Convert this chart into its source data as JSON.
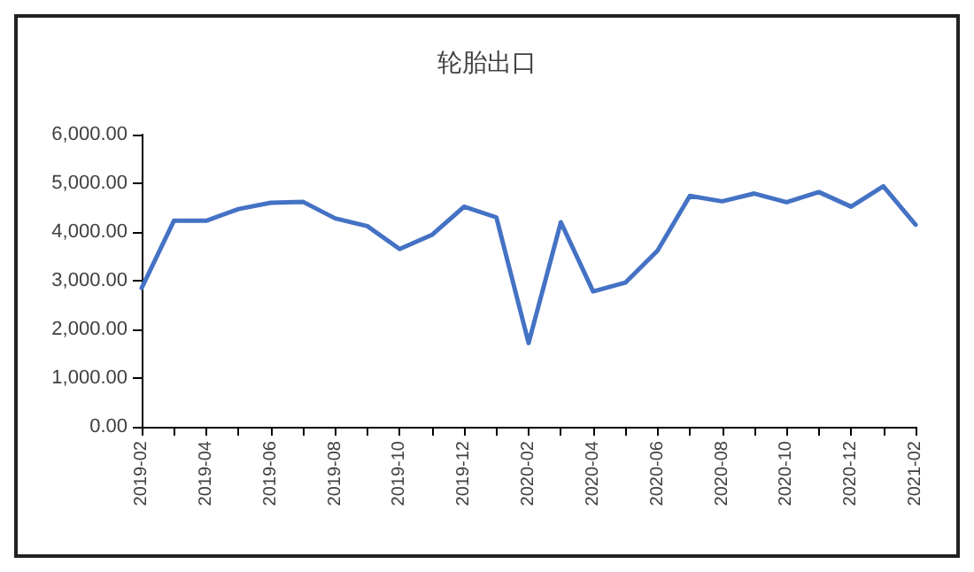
{
  "chart_data": {
    "type": "line",
    "title": "轮胎出口",
    "categories": [
      "2019-02",
      null,
      "2019-04",
      null,
      "2019-06",
      null,
      "2019-08",
      null,
      "2019-10",
      null,
      "2019-12",
      null,
      "2020-02",
      null,
      "2020-04",
      null,
      "2020-06",
      null,
      "2020-08",
      null,
      "2020-10",
      null,
      "2020-12",
      null,
      "2021-02"
    ],
    "series": [
      {
        "color": "#4472c4",
        "values": [
          2850,
          4230,
          4230,
          4470,
          4600,
          4620,
          4280,
          4120,
          3650,
          3940,
          4520,
          4300,
          1720,
          4200,
          2780,
          2960,
          3620,
          4740,
          4630,
          4790,
          4610,
          4820,
          4520,
          4940,
          4150
        ]
      }
    ],
    "ylim": [
      0,
      6000
    ],
    "yticks": [
      {
        "value": 0,
        "label": "0.00"
      },
      {
        "value": 1000,
        "label": "1,000.00"
      },
      {
        "value": 2000,
        "label": "2,000.00"
      },
      {
        "value": 3000,
        "label": "3,000.00"
      },
      {
        "value": 4000,
        "label": "4,000.00"
      },
      {
        "value": 5000,
        "label": "5,000.00"
      },
      {
        "value": 6000,
        "label": "6,000.00"
      }
    ],
    "grid": false,
    "marker": "none",
    "line_style": "solid"
  }
}
